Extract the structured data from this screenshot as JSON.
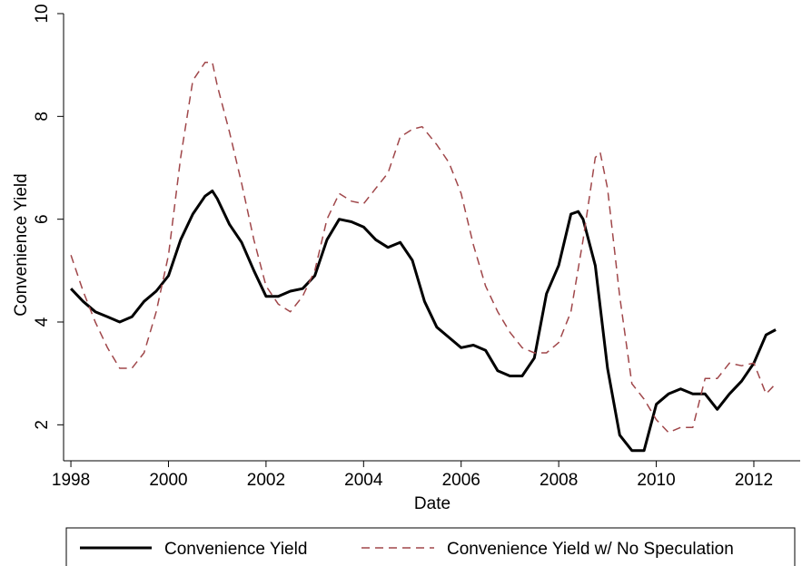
{
  "chart_data": {
    "type": "line",
    "title": "",
    "xlabel": "Date",
    "ylabel": "Convenience Yield",
    "xlim": [
      1997.85,
      2012.95
    ],
    "ylim": [
      1.3,
      10
    ],
    "x_ticks": [
      1998,
      2000,
      2002,
      2004,
      2006,
      2008,
      2010,
      2012
    ],
    "y_ticks": [
      2,
      4,
      6,
      8,
      10
    ],
    "grid": false,
    "legend_position": "bottom",
    "series": [
      {
        "name": "Convenience Yield",
        "color": "#000000",
        "style": "solid",
        "x": [
          1998.0,
          1998.25,
          1998.5,
          1998.75,
          1999.0,
          1999.25,
          1999.5,
          1999.75,
          2000.0,
          2000.25,
          2000.5,
          2000.75,
          2000.9,
          2001.0,
          2001.25,
          2001.5,
          2001.75,
          2002.0,
          2002.25,
          2002.5,
          2002.75,
          2003.0,
          2003.25,
          2003.5,
          2003.75,
          2004.0,
          2004.25,
          2004.5,
          2004.75,
          2005.0,
          2005.25,
          2005.5,
          2005.75,
          2006.0,
          2006.25,
          2006.5,
          2006.75,
          2007.0,
          2007.25,
          2007.5,
          2007.75,
          2008.0,
          2008.25,
          2008.4,
          2008.5,
          2008.75,
          2009.0,
          2009.25,
          2009.5,
          2009.75,
          2010.0,
          2010.25,
          2010.5,
          2010.75,
          2011.0,
          2011.25,
          2011.5,
          2011.75,
          2012.0,
          2012.25,
          2012.45
        ],
        "y": [
          4.65,
          4.4,
          4.2,
          4.1,
          4.0,
          4.1,
          4.4,
          4.6,
          4.9,
          5.6,
          6.1,
          6.45,
          6.55,
          6.4,
          5.9,
          5.55,
          5.0,
          4.5,
          4.5,
          4.6,
          4.65,
          4.9,
          5.6,
          6.0,
          5.95,
          5.85,
          5.6,
          5.45,
          5.55,
          5.2,
          4.4,
          3.9,
          3.7,
          3.5,
          3.55,
          3.45,
          3.05,
          2.95,
          2.95,
          3.3,
          4.55,
          5.1,
          6.1,
          6.15,
          6.0,
          5.1,
          3.1,
          1.8,
          1.5,
          1.5,
          2.4,
          2.6,
          2.7,
          2.6,
          2.6,
          2.3,
          2.6,
          2.85,
          3.2,
          3.75,
          3.85
        ]
      },
      {
        "name": "Convenience Yield w/ No Speculation",
        "color": "#a0474a",
        "style": "dashed",
        "x": [
          1998.0,
          1998.25,
          1998.5,
          1998.75,
          1999.0,
          1999.25,
          1999.5,
          1999.75,
          2000.0,
          2000.25,
          2000.5,
          2000.75,
          2000.9,
          2001.0,
          2001.25,
          2001.5,
          2001.75,
          2002.0,
          2002.25,
          2002.5,
          2002.75,
          2003.0,
          2003.25,
          2003.5,
          2003.75,
          2004.0,
          2004.25,
          2004.5,
          2004.75,
          2005.0,
          2005.2,
          2005.5,
          2005.75,
          2006.0,
          2006.25,
          2006.5,
          2006.75,
          2007.0,
          2007.25,
          2007.5,
          2007.75,
          2008.0,
          2008.25,
          2008.5,
          2008.75,
          2008.85,
          2009.0,
          2009.25,
          2009.5,
          2009.75,
          2010.0,
          2010.25,
          2010.5,
          2010.75,
          2011.0,
          2011.25,
          2011.5,
          2011.75,
          2012.0,
          2012.25,
          2012.45
        ],
        "y": [
          5.3,
          4.6,
          4.0,
          3.5,
          3.1,
          3.1,
          3.4,
          4.2,
          5.3,
          7.2,
          8.7,
          9.05,
          9.05,
          8.6,
          7.7,
          6.7,
          5.6,
          4.7,
          4.35,
          4.2,
          4.5,
          5.0,
          6.0,
          6.5,
          6.35,
          6.3,
          6.6,
          6.9,
          7.6,
          7.75,
          7.8,
          7.45,
          7.1,
          6.5,
          5.5,
          4.7,
          4.2,
          3.8,
          3.5,
          3.4,
          3.4,
          3.6,
          4.2,
          5.6,
          7.2,
          7.3,
          6.6,
          4.5,
          2.8,
          2.5,
          2.1,
          1.85,
          1.95,
          1.95,
          2.9,
          2.9,
          3.2,
          3.15,
          3.2,
          2.6,
          2.8
        ]
      }
    ]
  }
}
